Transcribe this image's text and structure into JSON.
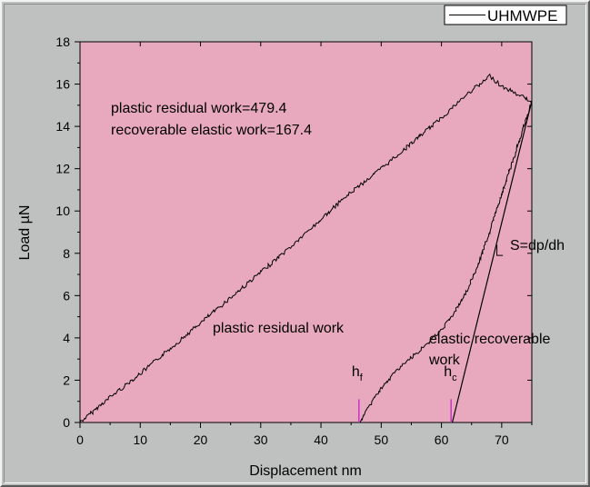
{
  "chart_data": {
    "type": "line",
    "title": "",
    "xlabel": "Displacement nm",
    "ylabel": "Load µN",
    "xlim": [
      0,
      75
    ],
    "ylim": [
      0,
      18
    ],
    "xticks": [
      0,
      10,
      20,
      30,
      40,
      50,
      60,
      70
    ],
    "yticks": [
      0,
      2,
      4,
      6,
      8,
      10,
      12,
      14,
      16,
      18
    ],
    "grid": false,
    "legend_position": "top-right",
    "colors": {
      "plot_background": "#e8a9be",
      "frame_background": "#bfc0c0",
      "series_line": "#000000",
      "marker_line": "#cc33cc"
    },
    "series": [
      {
        "name": "UHMWPE",
        "segments": {
          "loading": {
            "x": [
              0,
              5,
              10,
              15,
              20,
              25,
              30,
              35,
              40,
              45,
              50,
              55,
              60,
              63,
              65,
              67,
              68,
              70,
              72,
              75
            ],
            "y": [
              0,
              1.2,
              2.3,
              3.5,
              4.7,
              5.9,
              7.1,
              8.3,
              9.6,
              10.9,
              12.0,
              13.2,
              14.4,
              15.2,
              15.7,
              16.1,
              16.4,
              15.9,
              15.6,
              15.2
            ]
          },
          "unloading": {
            "x": [
              75,
              72,
              70,
              68,
              66,
              64,
              62,
              60,
              58,
              56,
              54,
              52,
              50,
              48,
              47,
              46.5
            ],
            "y": [
              15.2,
              12.5,
              10.8,
              9.0,
              7.4,
              6.1,
              5.1,
              4.4,
              3.8,
              3.3,
              2.8,
              2.3,
              1.6,
              0.8,
              0.3,
              0.0
            ]
          }
        }
      }
    ],
    "tangent_line": {
      "x": [
        61.8,
        75
      ],
      "y": [
        0,
        15.2
      ]
    },
    "slope_marker": {
      "x": [
        69.2,
        69.2,
        70.2
      ],
      "y": [
        8.4,
        7.9,
        7.9
      ]
    },
    "markers": [
      {
        "label": "h",
        "subscript": "f",
        "x": 46.3
      },
      {
        "label": "h",
        "subscript": "c",
        "x": 61.6
      }
    ],
    "annotations": [
      {
        "text": "plastic residual work=479.4"
      },
      {
        "text": "recoverable elastic work=167.4"
      },
      {
        "text": "plastic residual work"
      },
      {
        "text": "elastic recoverable"
      },
      {
        "text": "work"
      },
      {
        "text": "S=dp/dh"
      }
    ]
  }
}
